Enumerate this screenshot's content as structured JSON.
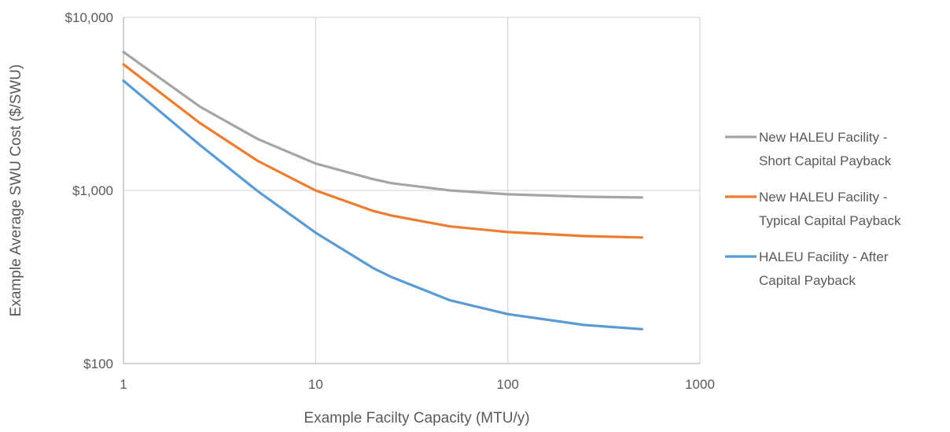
{
  "chart_data": {
    "type": "line",
    "title": "",
    "xlabel": "Example Facilty Capacity (MTU/y)",
    "ylabel": "Example Average SWU Cost ($/SWU)",
    "x_scale": "log",
    "y_scale": "log",
    "xlim": [
      1,
      1000
    ],
    "ylim": [
      100,
      10000
    ],
    "x_ticks": [
      1,
      10,
      100,
      1000
    ],
    "x_tick_labels": [
      "1",
      "10",
      "100",
      "1000"
    ],
    "y_ticks": [
      100,
      1000,
      10000
    ],
    "y_tick_labels": [
      "$100",
      "$1,000",
      "$10,000"
    ],
    "grid": true,
    "legend_position": "right",
    "series": [
      {
        "name": "New HALEU Facility - Short Capital Payback",
        "legend_lines": [
          "New HALEU Facility -",
          "Short Capital Payback"
        ],
        "color": "#a5a5a5",
        "x": [
          1,
          2.5,
          5,
          10,
          20,
          25,
          50,
          100,
          250,
          500
        ],
        "y": [
          6300,
          3050,
          1980,
          1430,
          1160,
          1100,
          1000,
          950,
          920,
          910
        ]
      },
      {
        "name": "New HALEU Facility - Typical Capital Payback",
        "legend_lines": [
          "New HALEU Facility -",
          "Typical Capital Payback"
        ],
        "color": "#ed7d31",
        "x": [
          1,
          2.5,
          5,
          10,
          20,
          25,
          50,
          100,
          250,
          500
        ],
        "y": [
          5350,
          2450,
          1480,
          1000,
          760,
          715,
          620,
          575,
          545,
          535
        ]
      },
      {
        "name": "HALEU Facility - After Capital Payback",
        "legend_lines": [
          "HALEU Facility - After",
          "Capital Payback"
        ],
        "color": "#5b9bd5",
        "x": [
          1,
          2.5,
          5,
          10,
          20,
          25,
          50,
          100,
          250,
          500
        ],
        "y": [
          4300,
          1830,
          990,
          570,
          355,
          315,
          232,
          193,
          167,
          158
        ]
      }
    ]
  }
}
